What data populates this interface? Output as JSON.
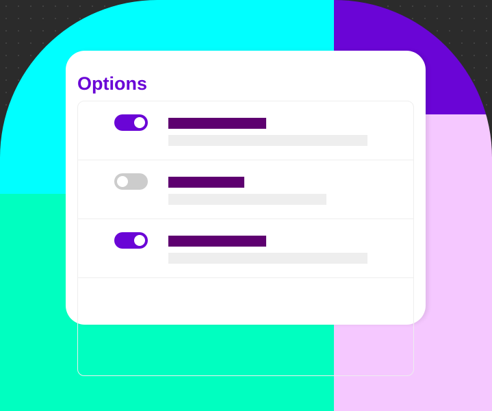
{
  "colors": {
    "cyan": "#00ffff",
    "green": "#00ffc0",
    "purple": "#6a05d6",
    "pink": "#f5c8ff",
    "on": "#6a05d6",
    "off": "#cccccc"
  },
  "card": {
    "title": "Options"
  },
  "options": [
    {
      "enabled": true,
      "title_bar_width": 143,
      "desc_bar_width": 291
    },
    {
      "enabled": false,
      "title_bar_width": 111,
      "desc_bar_width": 231
    },
    {
      "enabled": true,
      "title_bar_width": 143,
      "desc_bar_width": 291
    }
  ]
}
